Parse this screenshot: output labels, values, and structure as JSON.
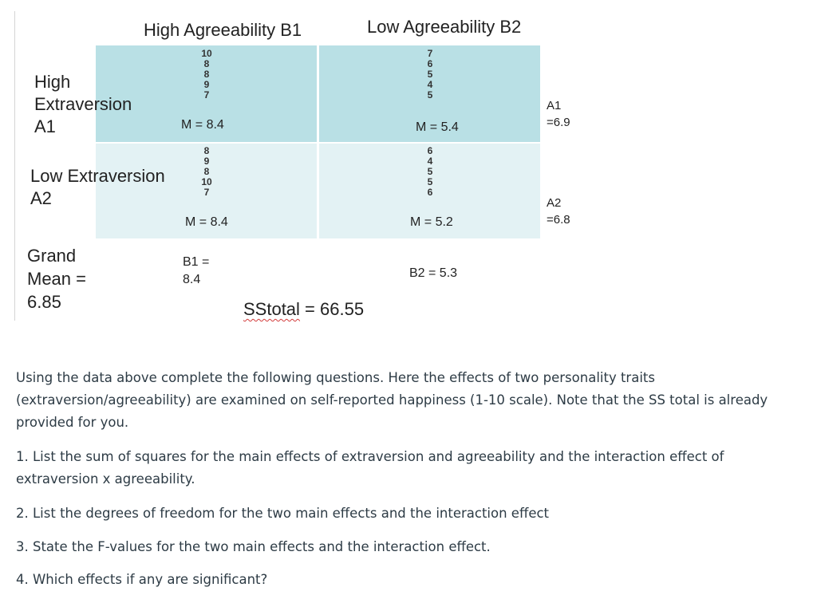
{
  "table": {
    "col_headers": [
      "High Agreeability B1",
      "Low Agreeability B2"
    ],
    "rows": [
      {
        "label_lines": [
          "High",
          "Extraversion",
          "A1"
        ],
        "cells": [
          {
            "values": [
              "10",
              "8",
              "8",
              "9",
              "7"
            ],
            "mean": "M = 8.4"
          },
          {
            "values": [
              "7",
              "6",
              "5",
              "4",
              "5"
            ],
            "mean": "M = 5.4"
          }
        ],
        "marginal_lines": [
          "A1",
          "=6.9"
        ]
      },
      {
        "label_lines": [
          "Low Extraversion",
          "A2"
        ],
        "cells": [
          {
            "values": [
              "8",
              "9",
              "8",
              "10",
              "7"
            ],
            "mean": "M = 8.4"
          },
          {
            "values": [
              "6",
              "4",
              "5",
              "5",
              "6"
            ],
            "mean": "M = 5.2"
          }
        ],
        "marginal_lines": [
          "A2",
          "=6.8"
        ]
      }
    ],
    "grand_mean_lines": [
      "Grand",
      "Mean =",
      "6.85"
    ],
    "col_marginals": {
      "b1_lines": [
        "B1 =",
        "8.4"
      ],
      "b2": "B2 = 5.3"
    },
    "sstotal": {
      "label": "SStotal",
      "value": " = 66.55"
    }
  },
  "instructions": {
    "intro": "Using the data above complete the following questions. Here the effects of two personality traits (extraversion/agreeability) are examined on self-reported happiness (1-10 scale). Note that the SS total is already provided for you.",
    "questions": [
      "1.  List the sum of squares for the main effects of extraversion and agreeability and the interaction effect of extraversion x agreeability.",
      "2. List the degrees of freedom for the two main effects and the interaction effect",
      "3. State the F-values for the two main effects and the interaction effect.",
      "4. Which effects if any are significant?"
    ]
  }
}
